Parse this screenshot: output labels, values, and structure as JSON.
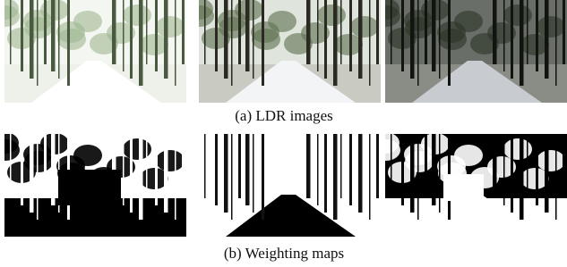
{
  "figure": {
    "captions": [
      "(a) LDR images",
      "(b) Weighting maps"
    ]
  }
}
